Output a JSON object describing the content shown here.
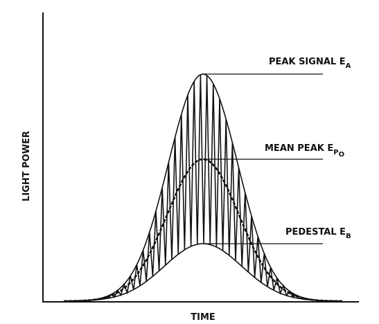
{
  "labels": [
    {
      "text": "PEAK SIGNAL E",
      "subscript": "A"
    },
    {
      "text": "MEAN PEAK E",
      "subscript": "P",
      "subsubscript": "O"
    },
    {
      "text": "PEDESTAL E",
      "subscript": "B"
    }
  ],
  "x_label": "TIME",
  "y_label": "LIGHT POWER"
}
